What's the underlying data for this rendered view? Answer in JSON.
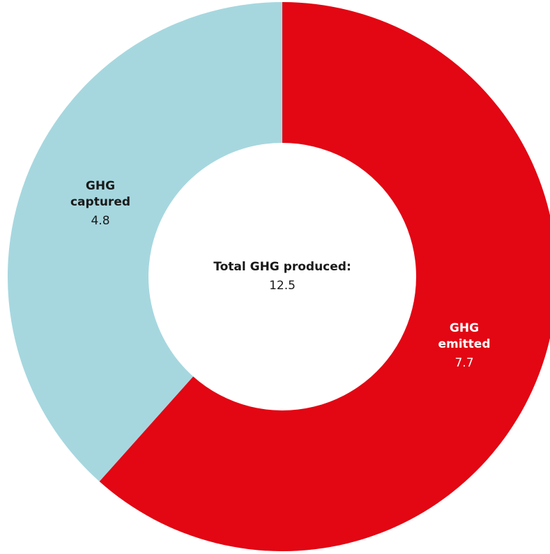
{
  "chart_data": {
    "type": "pie",
    "style": "donut",
    "center": {
      "label": "Total GHG produced:",
      "value": "12.5"
    },
    "slices": [
      {
        "label_lines": [
          "GHG",
          "emitted"
        ],
        "value": 7.7,
        "value_text": "7.7",
        "color": "#e30613",
        "label_color": "#ffffff"
      },
      {
        "label_lines": [
          "GHG",
          "captured"
        ],
        "value": 4.8,
        "value_text": "4.8",
        "color": "#a6d7df",
        "label_color": "#1a1a1a"
      }
    ]
  }
}
